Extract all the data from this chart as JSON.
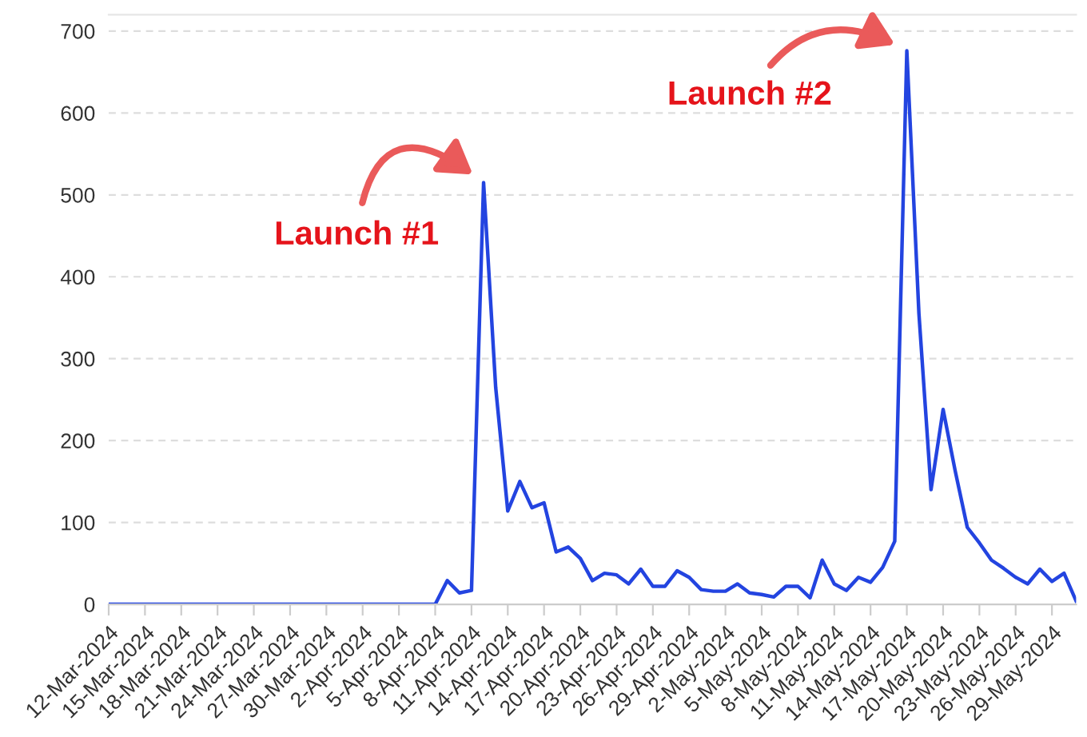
{
  "chart_data": {
    "type": "line",
    "x": [
      "2024-03-12",
      "2024-03-13",
      "2024-03-14",
      "2024-03-15",
      "2024-03-16",
      "2024-03-17",
      "2024-03-18",
      "2024-03-19",
      "2024-03-20",
      "2024-03-21",
      "2024-03-22",
      "2024-03-23",
      "2024-03-24",
      "2024-03-25",
      "2024-03-26",
      "2024-03-27",
      "2024-03-28",
      "2024-03-29",
      "2024-03-30",
      "2024-03-31",
      "2024-04-01",
      "2024-04-02",
      "2024-04-03",
      "2024-04-04",
      "2024-04-05",
      "2024-04-06",
      "2024-04-07",
      "2024-04-08",
      "2024-04-09",
      "2024-04-10",
      "2024-04-11",
      "2024-04-12",
      "2024-04-13",
      "2024-04-14",
      "2024-04-15",
      "2024-04-16",
      "2024-04-17",
      "2024-04-18",
      "2024-04-19",
      "2024-04-20",
      "2024-04-21",
      "2024-04-22",
      "2024-04-23",
      "2024-04-24",
      "2024-04-25",
      "2024-04-26",
      "2024-04-27",
      "2024-04-28",
      "2024-04-29",
      "2024-04-30",
      "2024-05-01",
      "2024-05-02",
      "2024-05-03",
      "2024-05-04",
      "2024-05-05",
      "2024-05-06",
      "2024-05-07",
      "2024-05-08",
      "2024-05-09",
      "2024-05-10",
      "2024-05-11",
      "2024-05-12",
      "2024-05-13",
      "2024-05-14",
      "2024-05-15",
      "2024-05-16",
      "2024-05-17",
      "2024-05-18",
      "2024-05-19",
      "2024-05-20",
      "2024-05-21",
      "2024-05-22",
      "2024-05-23",
      "2024-05-24",
      "2024-05-25",
      "2024-05-26",
      "2024-05-27",
      "2024-05-28",
      "2024-05-29",
      "2024-05-30",
      "2024-05-31"
    ],
    "series": [
      {
        "color": "#2344e0",
        "values": [
          0,
          0,
          0,
          0,
          0,
          0,
          0,
          0,
          0,
          0,
          0,
          0,
          0,
          0,
          0,
          0,
          0,
          0,
          0,
          0,
          0,
          0,
          0,
          0,
          0,
          0,
          0,
          0,
          29,
          14,
          17,
          515,
          265,
          114,
          150,
          118,
          124,
          64,
          70,
          56,
          29,
          38,
          36,
          25,
          43,
          22,
          22,
          41,
          33,
          18,
          16,
          16,
          25,
          14,
          12,
          9,
          22,
          22,
          8,
          54,
          25,
          17,
          33,
          27,
          45,
          77,
          676,
          355,
          140,
          238,
          163,
          94,
          75,
          54,
          44,
          33,
          25,
          43,
          28,
          38,
          4
        ]
      }
    ],
    "xlim": [
      "2024-03-12",
      "2024-05-31"
    ],
    "xticks": [
      {
        "value": "2024-03-12",
        "label": "12-Mar-2024"
      },
      {
        "value": "2024-03-15",
        "label": "15-Mar-2024"
      },
      {
        "value": "2024-03-18",
        "label": "18-Mar-2024"
      },
      {
        "value": "2024-03-21",
        "label": "21-Mar-2024"
      },
      {
        "value": "2024-03-24",
        "label": "24-Mar-2024"
      },
      {
        "value": "2024-03-27",
        "label": "27-Mar-2024"
      },
      {
        "value": "2024-03-30",
        "label": "30-Mar-2024"
      },
      {
        "value": "2024-04-02",
        "label": "2-Apr-2024"
      },
      {
        "value": "2024-04-05",
        "label": "5-Apr-2024"
      },
      {
        "value": "2024-04-08",
        "label": "8-Apr-2024"
      },
      {
        "value": "2024-04-11",
        "label": "11-Apr-2024"
      },
      {
        "value": "2024-04-14",
        "label": "14-Apr-2024"
      },
      {
        "value": "2024-04-17",
        "label": "17-Apr-2024"
      },
      {
        "value": "2024-04-20",
        "label": "20-Apr-2024"
      },
      {
        "value": "2024-04-23",
        "label": "23-Apr-2024"
      },
      {
        "value": "2024-04-26",
        "label": "26-Apr-2024"
      },
      {
        "value": "2024-04-29",
        "label": "29-Apr-2024"
      },
      {
        "value": "2024-05-02",
        "label": "2-May-2024"
      },
      {
        "value": "2024-05-05",
        "label": "5-May-2024"
      },
      {
        "value": "2024-05-08",
        "label": "8-May-2024"
      },
      {
        "value": "2024-05-11",
        "label": "11-May-2024"
      },
      {
        "value": "2024-05-14",
        "label": "14-May-2024"
      },
      {
        "value": "2024-05-17",
        "label": "17-May-2024"
      },
      {
        "value": "2024-05-20",
        "label": "20-May-2024"
      },
      {
        "value": "2024-05-23",
        "label": "23-May-2024"
      },
      {
        "value": "2024-05-26",
        "label": "26-May-2024"
      },
      {
        "value": "2024-05-29",
        "label": "29-May-2024"
      }
    ],
    "ylim": [
      0,
      720
    ],
    "yticks": [
      0,
      100,
      200,
      300,
      400,
      500,
      600,
      700
    ],
    "grid": "y",
    "annotations": [
      {
        "text": "Launch #1",
        "x": "2024-04-12",
        "y": 515
      },
      {
        "text": "Launch #2",
        "x": "2024-05-17",
        "y": 676
      }
    ]
  }
}
